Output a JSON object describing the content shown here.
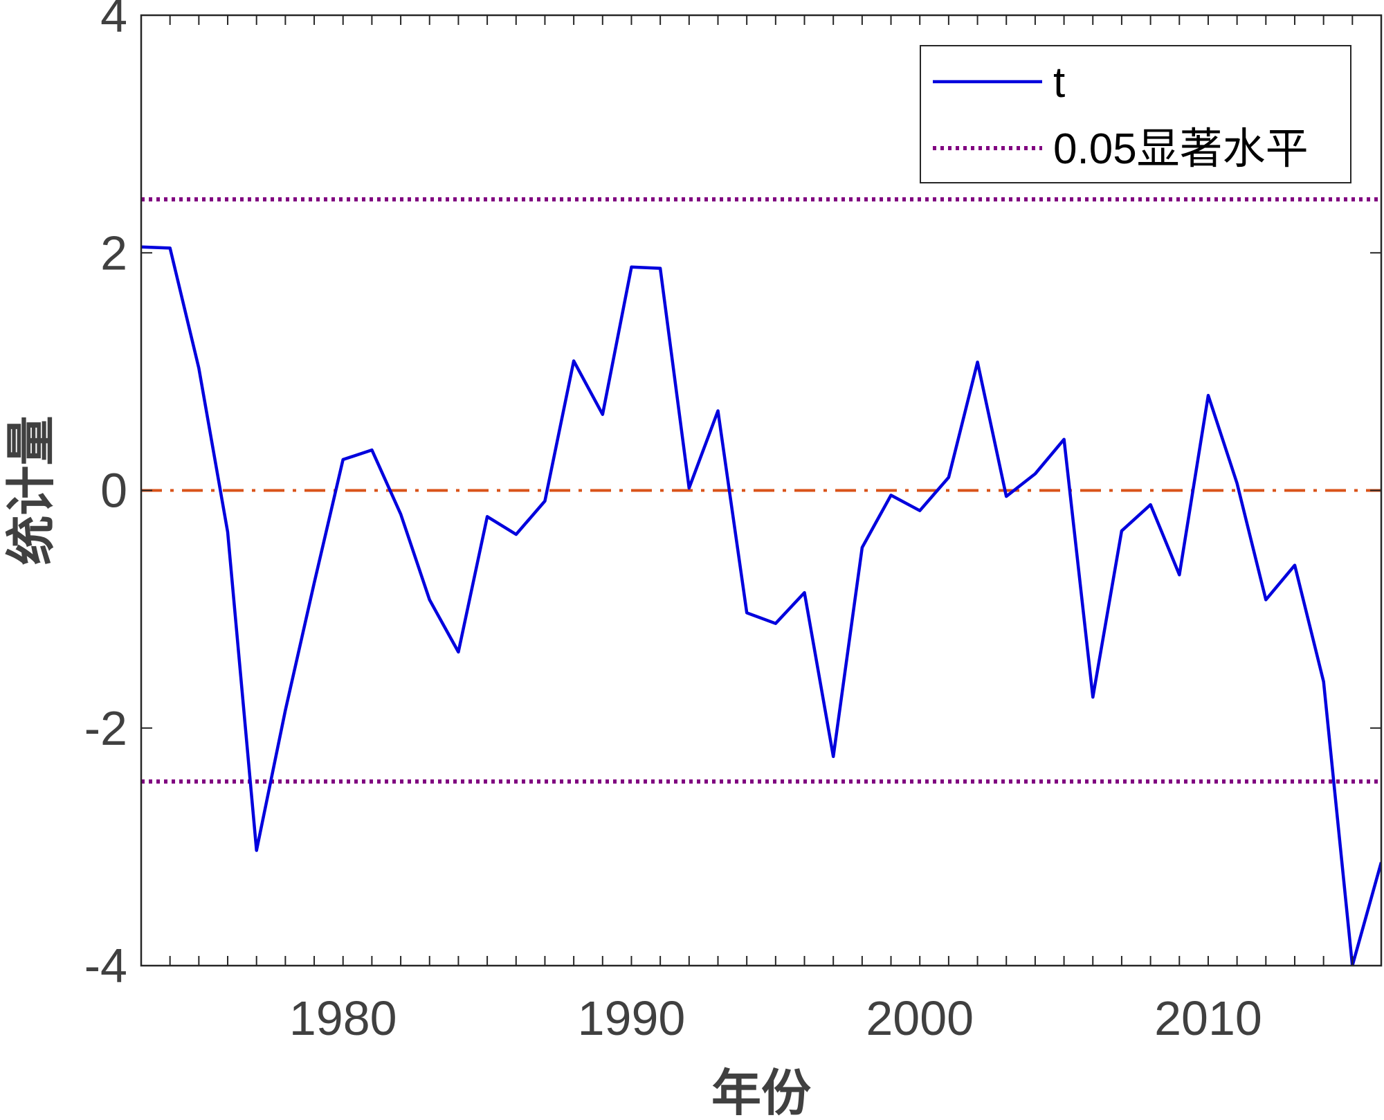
{
  "chart_data": {
    "type": "line",
    "xlabel": "年份",
    "ylabel": "统计量",
    "xlim": [
      1973,
      2016
    ],
    "ylim": [
      -4,
      4
    ],
    "x_ticks": [
      1980,
      1990,
      2000,
      2010
    ],
    "y_ticks": [
      -4,
      -2,
      0,
      2,
      4
    ],
    "x": [
      1973,
      1974,
      1975,
      1976,
      1977,
      1978,
      1979,
      1980,
      1981,
      1982,
      1983,
      1984,
      1985,
      1986,
      1987,
      1988,
      1989,
      1990,
      1991,
      1992,
      1993,
      1994,
      1995,
      1996,
      1997,
      1998,
      1999,
      2000,
      2001,
      2002,
      2003,
      2004,
      2005,
      2006,
      2007,
      2008,
      2009,
      2010,
      2011,
      2012,
      2013,
      2014,
      2015,
      2016
    ],
    "series": [
      {
        "name": "t",
        "color": "#0000dd",
        "style": "solid",
        "values": [
          2.05,
          2.04,
          1.03,
          -0.35,
          -3.03,
          -1.85,
          -0.78,
          0.26,
          0.34,
          -0.2,
          -0.92,
          -1.36,
          -0.22,
          -0.37,
          -0.09,
          1.09,
          0.64,
          1.88,
          1.87,
          0.02,
          0.67,
          -1.03,
          -1.12,
          -0.86,
          -2.24,
          -0.48,
          -0.04,
          -0.17,
          0.11,
          1.08,
          -0.05,
          0.14,
          0.43,
          -1.74,
          -0.34,
          -0.12,
          -0.71,
          0.8,
          0.06,
          -0.92,
          -0.63,
          -1.61,
          -4.0,
          -3.13
        ]
      }
    ],
    "reference_lines": [
      {
        "name": "0.05显著水平",
        "color": "#800080",
        "style": "dotted",
        "values": [
          2.45,
          -2.45
        ]
      },
      {
        "name": "",
        "color": "#d95319",
        "style": "dash-dot",
        "values": [
          0
        ]
      }
    ],
    "legend": {
      "position": "top-right",
      "entries": [
        {
          "label": "t",
          "color": "#0000dd",
          "style": "solid"
        },
        {
          "label": "0.05显著水平",
          "color": "#800080",
          "style": "dotted"
        }
      ]
    },
    "grid": false
  }
}
